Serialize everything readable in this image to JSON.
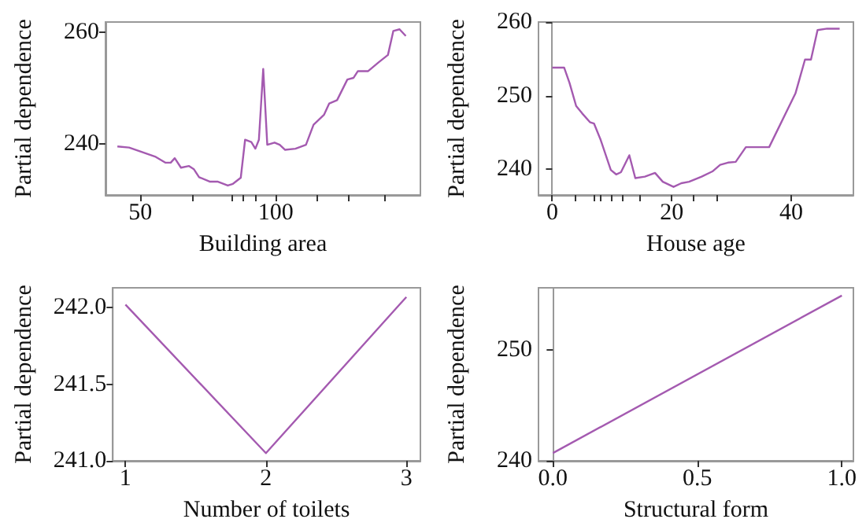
{
  "chart_data": [
    {
      "type": "line",
      "xlabel": "Building area",
      "ylabel": "Partial dependence",
      "color": "#a45ab0",
      "xlim": [
        37.1,
        153.5
      ],
      "ylim": [
        230.8,
        261.8
      ],
      "xticks": [
        50,
        100,
        {
          "value": 69.2,
          "label": null
        },
        {
          "value": 83.8,
          "label": null
        },
        {
          "value": 88.1,
          "label": null
        },
        {
          "value": 92.3,
          "label": null
        },
        {
          "value": 115,
          "label": null
        },
        {
          "value": 126.9,
          "label": null
        },
        {
          "value": 140,
          "label": null
        }
      ],
      "yticks": [
        240,
        260
      ],
      "x": [
        41.5,
        45.8,
        50,
        55.4,
        59.2,
        61.2,
        62.7,
        65,
        67.9,
        69.8,
        71.7,
        75.6,
        78.5,
        82.3,
        84.2,
        87.1,
        88.7,
        91,
        92.5,
        93.8,
        95.4,
        96.9,
        99.6,
        101.5,
        103.5,
        107.3,
        111.2,
        114,
        117.9,
        119.8,
        122.7,
        126.5,
        128.8,
        130.4,
        134.2,
        138.1,
        141.5,
        143.5,
        145.8,
        148.1
      ],
      "values": [
        239.5,
        239.3,
        238.6,
        237.7,
        236.6,
        236.6,
        237.4,
        235.7,
        236,
        235.4,
        234,
        233.2,
        233.2,
        232.5,
        232.8,
        233.9,
        240.7,
        240.3,
        239.1,
        240.7,
        253.4,
        239.8,
        240.2,
        239.8,
        238.9,
        239.1,
        239.8,
        243.4,
        245.2,
        247.2,
        247.8,
        251.5,
        251.8,
        253,
        253,
        254.6,
        255.9,
        260.2,
        260.5,
        259.3
      ]
    },
    {
      "type": "line",
      "xlabel": "House age",
      "ylabel": "Partial dependence",
      "color": "#a45ab0",
      "xlim": [
        -2.3,
        50.4
      ],
      "ylim": [
        236.5,
        260
      ],
      "xticks": [
        0,
        20,
        40,
        {
          "value": 3.9,
          "label": null
        },
        {
          "value": 7,
          "label": null
        },
        {
          "value": 8.1,
          "label": null
        },
        {
          "value": 9.8,
          "label": null
        },
        {
          "value": 11.8,
          "label": null
        },
        {
          "value": 14.6,
          "label": null
        },
        {
          "value": 23.7,
          "label": null
        },
        {
          "value": 27.5,
          "label": null
        }
      ],
      "yticks": [
        240,
        250,
        260
      ],
      "x": [
        0,
        2,
        2.9,
        4,
        5,
        6.3,
        7,
        8.1,
        9.8,
        10.7,
        11.5,
        12.9,
        13.9,
        15.5,
        17.2,
        18.5,
        20.3,
        21.6,
        22.9,
        25,
        26.8,
        28.1,
        29.4,
        30.7,
        32.4,
        36.3,
        40.7,
        42.3,
        43.3,
        44.4,
        46,
        48.1
      ],
      "values": [
        253.8,
        253.8,
        251.7,
        248.6,
        247.6,
        246.4,
        246.2,
        244,
        239.9,
        239.3,
        239.6,
        241.9,
        238.8,
        239,
        239.5,
        238.3,
        237.6,
        238.1,
        238.3,
        239,
        239.7,
        240.6,
        240.9,
        241,
        243,
        243,
        250.3,
        254.9,
        254.9,
        258.9,
        259.1,
        259.1
      ]
    },
    {
      "type": "line",
      "xlabel": "Number of toilets",
      "ylabel": "Partial dependence",
      "color": "#a45ab0",
      "xlim": [
        0.91,
        3.1
      ],
      "ylim": [
        241.0,
        242.13
      ],
      "xticks": [
        1,
        2,
        3
      ],
      "yticks": [
        {
          "value": 241,
          "label": "241.0"
        },
        241.5,
        {
          "value": 242,
          "label": "242.0"
        }
      ],
      "x": [
        1,
        2,
        3
      ],
      "values": [
        242.02,
        241.05,
        242.07
      ]
    },
    {
      "type": "line",
      "xlabel": "Structural form",
      "ylabel": "Partial dependence",
      "color": "#a45ab0",
      "xlim": [
        -0.05,
        1.04
      ],
      "ylim": [
        240,
        255.6
      ],
      "xticks": [
        {
          "value": 0,
          "label": "0.0"
        },
        0.5,
        {
          "value": 1,
          "label": "1.0"
        }
      ],
      "yticks": [
        240,
        250
      ],
      "x": [
        0,
        1
      ],
      "values": [
        240.7,
        254.9
      ]
    }
  ]
}
